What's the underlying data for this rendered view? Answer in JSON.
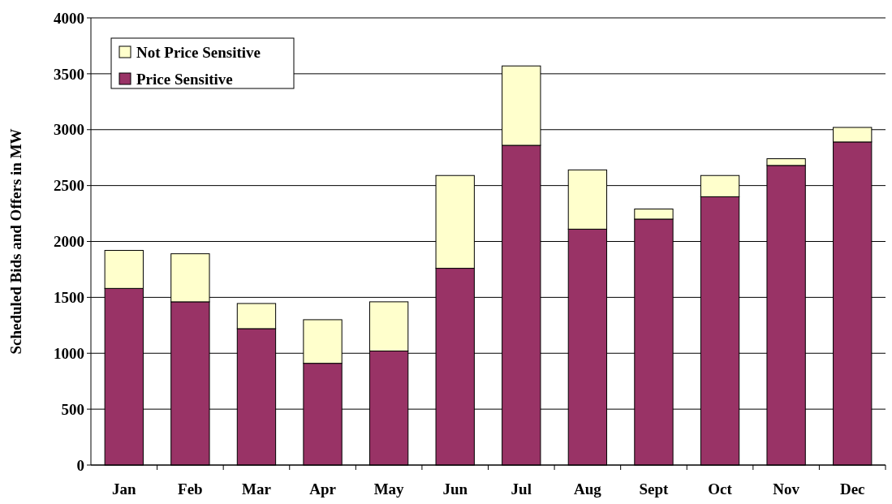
{
  "chart_data": {
    "type": "bar",
    "stacked": true,
    "ylabel": "Scheduled Bids and Offers in MW",
    "categories": [
      "Jan",
      "Feb",
      "Mar",
      "Apr",
      "May",
      "Jun",
      "Jul",
      "Aug",
      "Sept",
      "Oct",
      "Nov",
      "Dec"
    ],
    "series": [
      {
        "name": "Price Sensitive",
        "color": "#993366",
        "values": [
          1580,
          1460,
          1220,
          910,
          1020,
          1760,
          2860,
          2110,
          2200,
          2400,
          2680,
          2890
        ]
      },
      {
        "name": "Not Price Sensitive",
        "color": "#ffffcc",
        "values": [
          340,
          430,
          225,
          390,
          440,
          830,
          710,
          530,
          90,
          190,
          60,
          130
        ]
      }
    ],
    "ylim": [
      0,
      4000
    ],
    "yticks": [
      0,
      500,
      1000,
      1500,
      2000,
      2500,
      3000,
      3500,
      4000
    ],
    "grid": "y",
    "legend": "top left"
  }
}
